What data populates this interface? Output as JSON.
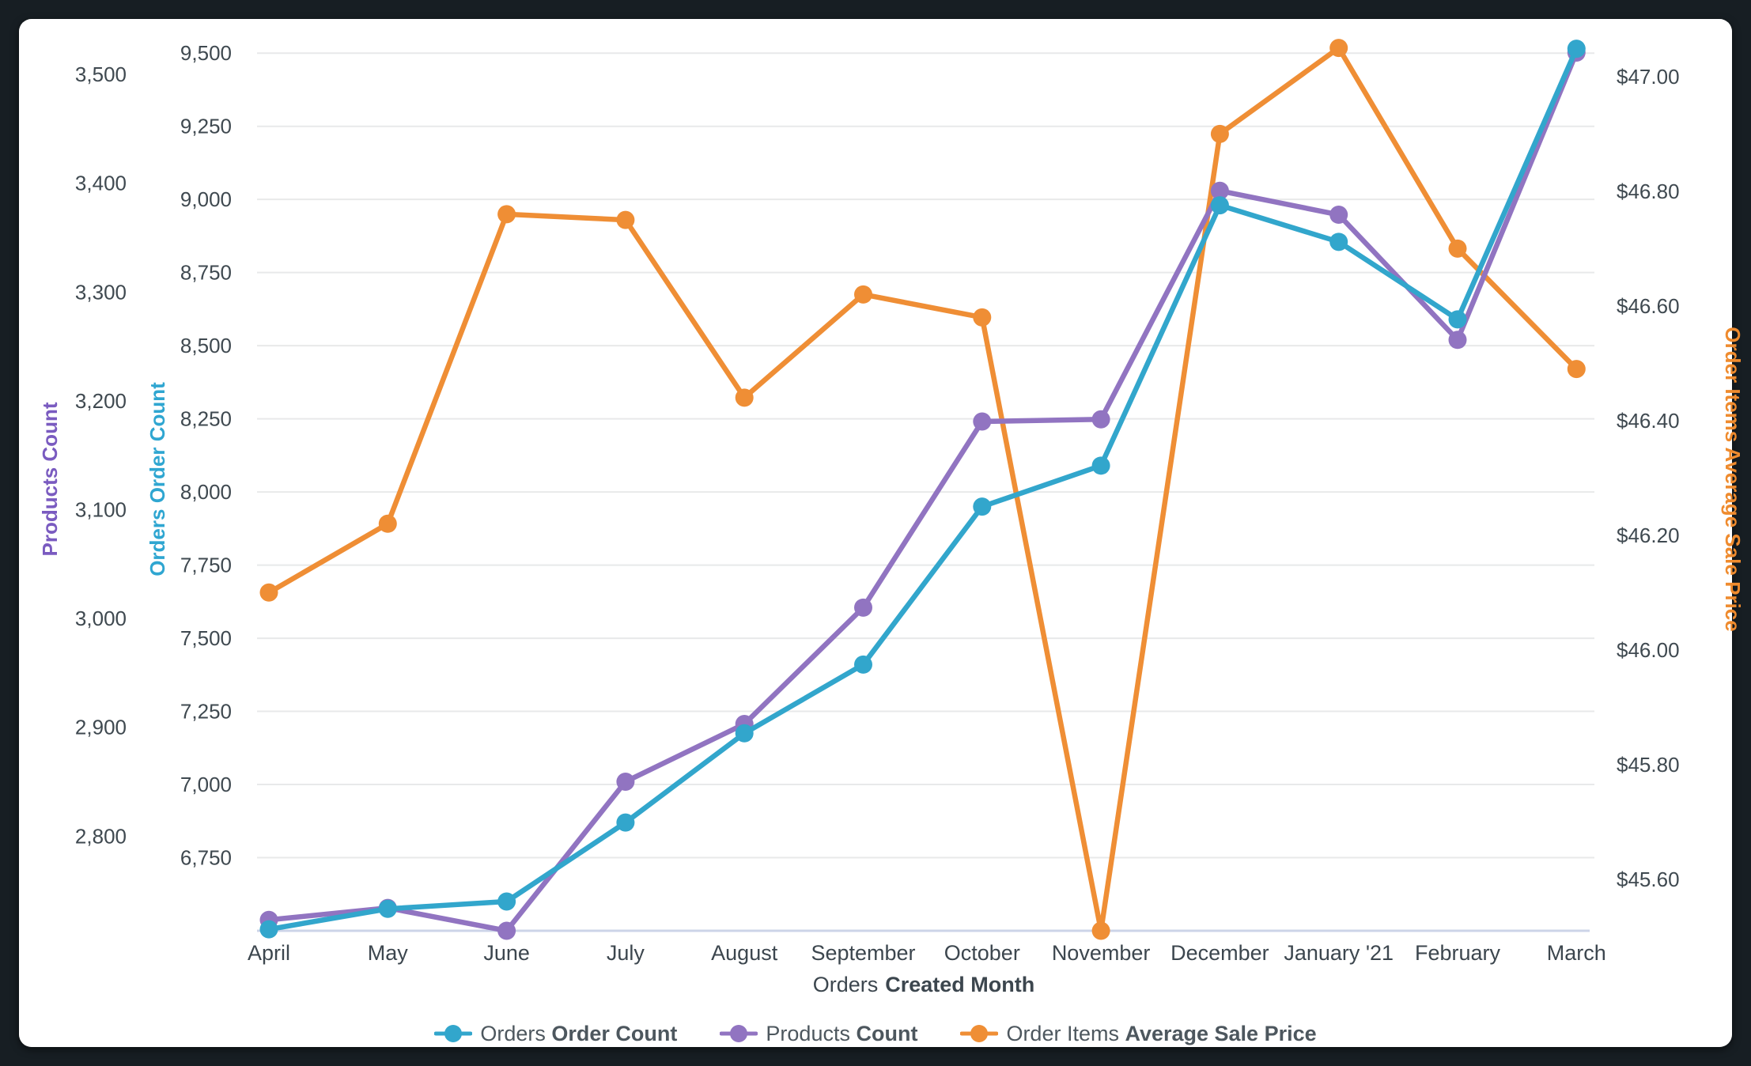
{
  "frame": {
    "background": "#171e23",
    "card_background": "#ffffff"
  },
  "chart_data": {
    "type": "line",
    "categories": [
      "April",
      "May",
      "June",
      "July",
      "August",
      "September",
      "October",
      "November",
      "December",
      "January '21",
      "February",
      "March"
    ],
    "xlabel_regular": "Orders",
    "xlabel_bold": "Created Month",
    "grid": true,
    "legend_position": "bottom",
    "series": [
      {
        "id": "orders-order-count",
        "label_regular": "Orders",
        "label_bold": "Order Count",
        "color": "#32a6cc",
        "axis": "orders",
        "values": [
          6505,
          6575,
          6600,
          6870,
          7175,
          7410,
          7950,
          8090,
          8980,
          8855,
          8590,
          9515
        ]
      },
      {
        "id": "products-count",
        "label_regular": "Products",
        "label_bold": "Count",
        "color": "#9174c1",
        "axis": "products",
        "values": [
          2723,
          2734,
          2713,
          2850,
          2903,
          3010,
          3181,
          3183,
          3393,
          3371,
          3256,
          3520
        ]
      },
      {
        "id": "order-items-average-sale-price",
        "label_regular": "Order Items",
        "label_bold": "Average Sale Price",
        "color": "#ef8e35",
        "axis": "price",
        "values": [
          46.1,
          46.22,
          46.76,
          46.75,
          46.44,
          46.62,
          46.58,
          45.51,
          46.9,
          47.05,
          46.7,
          46.49
        ]
      }
    ],
    "axes": {
      "products": {
        "title": "Products Count",
        "title_color": "#7a5bc0",
        "side": "left-outer",
        "min": 2713,
        "max": 3548,
        "ticks": [
          2800,
          2900,
          3000,
          3100,
          3200,
          3300,
          3400,
          3500
        ],
        "format": "thousands"
      },
      "orders": {
        "title": "Orders Order Count",
        "title_color": "#2fa6d1",
        "side": "left-inner",
        "min": 6500,
        "max": 9606,
        "ticks": [
          6750,
          7000,
          7250,
          7500,
          7750,
          8000,
          8250,
          8500,
          8750,
          9000,
          9250,
          9500
        ],
        "format": "thousands",
        "gridlines": true
      },
      "price": {
        "title": "Order Items Average Sale Price",
        "title_color": "#ef8b2e",
        "side": "right",
        "min": 45.51,
        "max": 47.095,
        "ticks": [
          45.6,
          45.8,
          46.0,
          46.2,
          46.4,
          46.6,
          46.8,
          47.0
        ],
        "format": "currency"
      }
    },
    "tick_color": "#3f4950",
    "gridline_color": "#e8e9ea",
    "baseline_color": "#ccd4e8"
  }
}
